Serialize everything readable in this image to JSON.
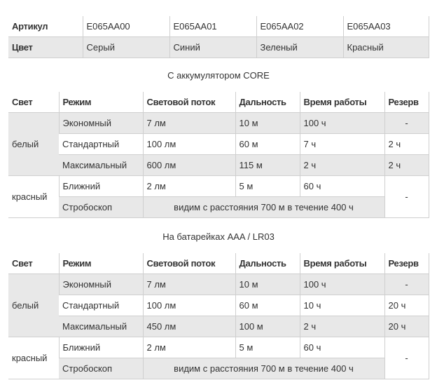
{
  "articles": {
    "label": "Артикул",
    "values": [
      "E065AA00",
      "E065AA01",
      "E065AA02",
      "E065AA03"
    ]
  },
  "colors": {
    "label": "Цвет",
    "values": [
      "Серый",
      "Синий",
      "Зеленый",
      "Красный"
    ]
  },
  "headers": [
    "Свет",
    "Режим",
    "Световой поток",
    "Дальность",
    "Время работы",
    "Резерв"
  ],
  "tables": [
    {
      "title": "С аккумулятором CORE",
      "white_label": "белый",
      "red_label": "красный",
      "rows": [
        {
          "mode": "Экономный",
          "flux": "7 лм",
          "range": "10 м",
          "time": "100 ч",
          "reserve": "-"
        },
        {
          "mode": "Стандартный",
          "flux": "100 лм",
          "range": "60 м",
          "time": "7 ч",
          "reserve": "2 ч"
        },
        {
          "mode": "Максимальный",
          "flux": "600 лм",
          "range": "115 м",
          "time": "2 ч",
          "reserve": "2 ч"
        },
        {
          "mode": "Ближний",
          "flux": "2 лм",
          "range": "5 м",
          "time": "60 ч"
        }
      ],
      "strobe_mode": "Стробоскоп",
      "strobe_text": "видим с расстояния 700 м в течение 400 ч",
      "red_reserve": "-"
    },
    {
      "title": "На батарейках AAA / LR03",
      "white_label": "белый",
      "red_label": "красный",
      "rows": [
        {
          "mode": "Экономный",
          "flux": "7 лм",
          "range": "10 м",
          "time": "100 ч",
          "reserve": "-"
        },
        {
          "mode": "Стандартный",
          "flux": "100 лм",
          "range": "60 м",
          "time": "10 ч",
          "reserve": "20 ч"
        },
        {
          "mode": "Максимальный",
          "flux": "450 лм",
          "range": "100 м",
          "time": "2 ч",
          "reserve": "20 ч"
        },
        {
          "mode": "Ближний",
          "flux": "2 лм",
          "range": "5 м",
          "time": "60 ч"
        }
      ],
      "strobe_mode": "Стробоскоп",
      "strobe_text": "видим с расстояния 700 м в течение 400 ч",
      "red_reserve": "-"
    }
  ]
}
